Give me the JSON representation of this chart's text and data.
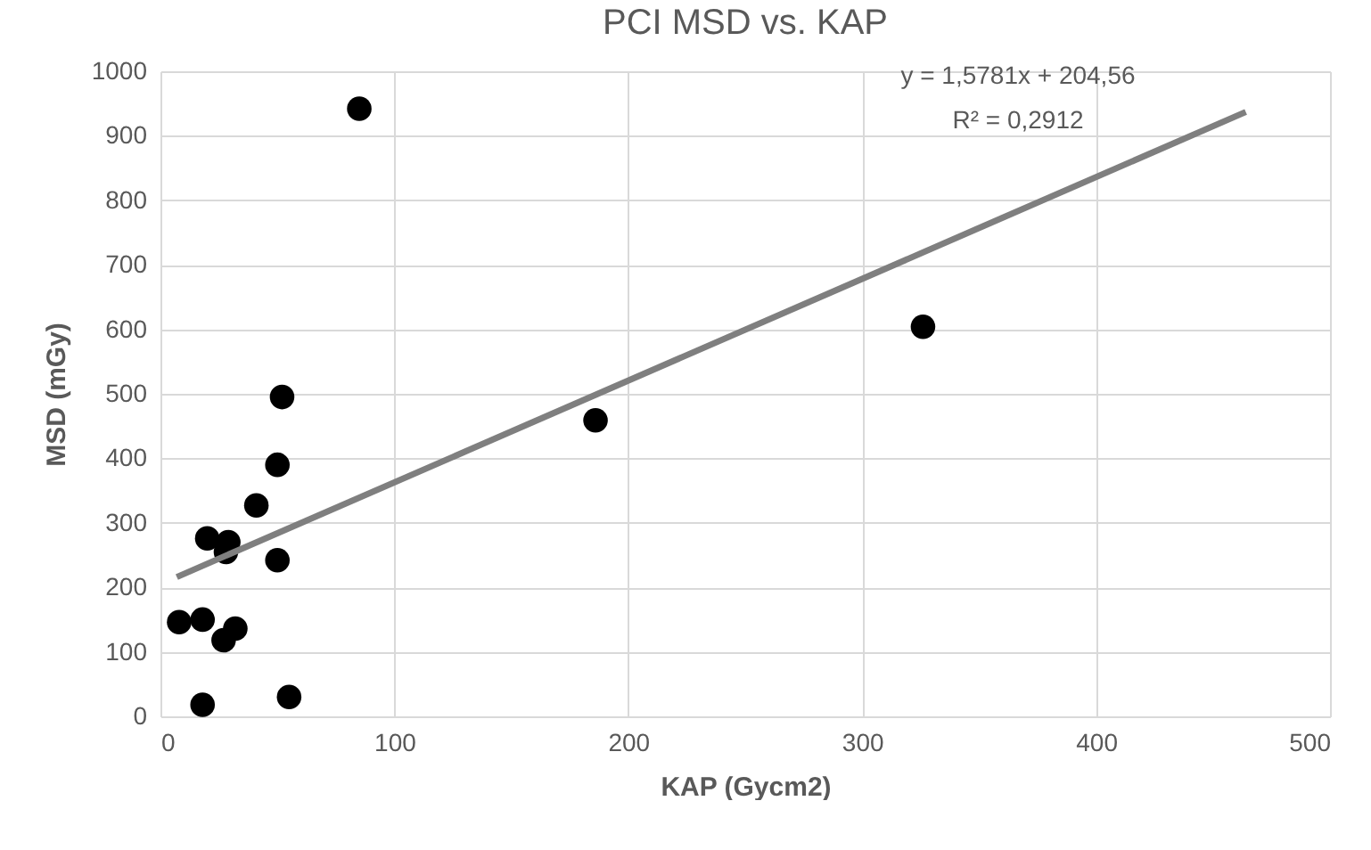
{
  "chart_data": {
    "type": "scatter",
    "title": "PCI MSD vs. KAP",
    "xlabel": "KAP (Gycm2)",
    "ylabel": "MSD (mGy)",
    "annotations": [
      "y = 1,5781x + 204,56",
      "R² = 0,2912"
    ],
    "series": [
      {
        "color": "#000000",
        "marker": "circle",
        "x": [
          85,
          52,
          50,
          41,
          20,
          29,
          28,
          50,
          8,
          18,
          32,
          27,
          18,
          55,
          186,
          326
        ],
        "values": [
          942,
          495,
          390,
          327,
          276,
          270,
          255,
          242,
          146,
          150,
          136,
          118,
          18,
          30,
          459,
          604
        ]
      },
      {
        "type": "line",
        "color": "#7f7f7f",
        "x": [
          7,
          464
        ],
        "values": [
          216,
          937
        ]
      }
    ],
    "xlim": [
      0,
      500
    ],
    "xticks": [
      0,
      100,
      200,
      300,
      400,
      500
    ],
    "ylim": [
      0,
      1000
    ],
    "yticks": [
      0,
      100,
      200,
      300,
      400,
      500,
      600,
      700,
      800,
      900,
      1000
    ],
    "grid": true
  }
}
